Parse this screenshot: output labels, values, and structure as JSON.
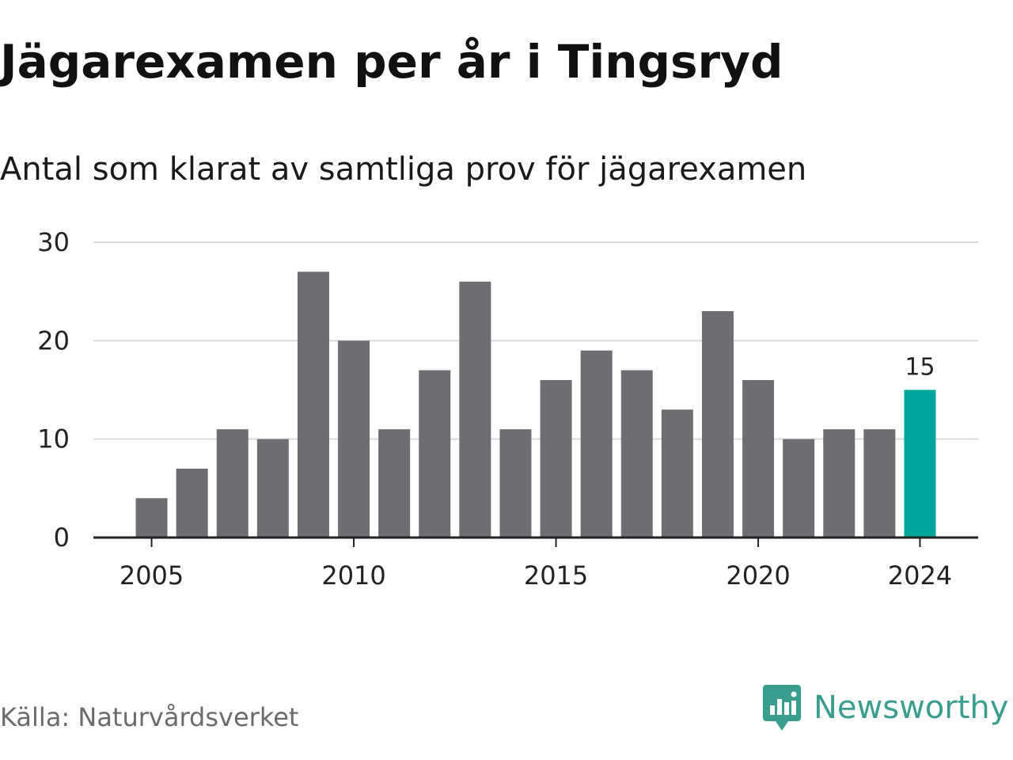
{
  "title": "Jägarexamen per år i Tingsryd",
  "subtitle": "Antal som klarat av samtliga prov för jägarexamen",
  "source": "Källa: Naturvårdsverket",
  "brand": {
    "name": "Newsworthy",
    "icon": "newsworthy-logo-icon",
    "color": "#3a9e8f"
  },
  "colors": {
    "bar": "#6e6d72",
    "highlight": "#00a69c",
    "grid": "#d9d9d9",
    "axis": "#222222",
    "text": "#222222"
  },
  "chart_data": {
    "type": "bar",
    "x": [
      2005,
      2006,
      2007,
      2008,
      2009,
      2010,
      2011,
      2012,
      2013,
      2014,
      2015,
      2016,
      2017,
      2018,
      2019,
      2020,
      2021,
      2022,
      2023,
      2024
    ],
    "values": [
      4,
      7,
      11,
      10,
      27,
      20,
      11,
      17,
      26,
      11,
      16,
      19,
      17,
      13,
      23,
      16,
      10,
      11,
      11,
      15
    ],
    "x_ticks": [
      "2005",
      "2010",
      "2015",
      "2020",
      "2024"
    ],
    "y_ticks": [
      "0",
      "10",
      "20",
      "30"
    ],
    "ylim": [
      0,
      30
    ],
    "highlight_x": 2024,
    "data_labels": [
      {
        "x": 2024,
        "label": "15"
      }
    ],
    "grid": true,
    "legend": "none"
  }
}
